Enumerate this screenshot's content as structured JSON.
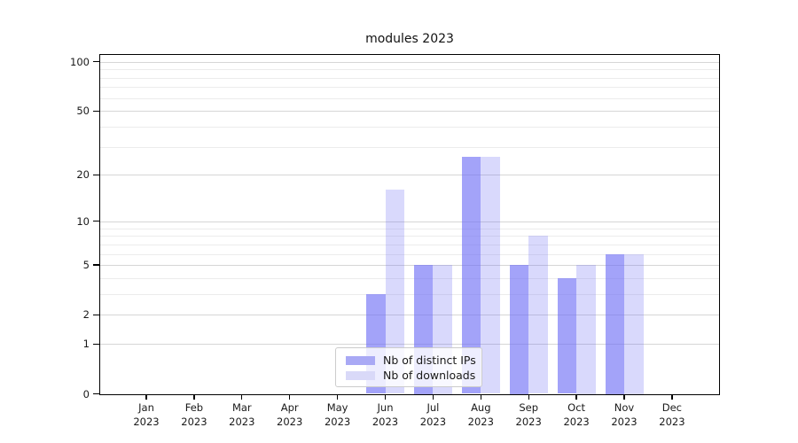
{
  "title": "modules 2023",
  "chart_data": {
    "type": "bar",
    "title": "modules 2023",
    "x_categories": [
      "Jan",
      "Feb",
      "Mar",
      "Apr",
      "May",
      "Jun",
      "Jul",
      "Aug",
      "Sep",
      "Oct",
      "Nov",
      "Dec"
    ],
    "x_year": "2023",
    "series": [
      {
        "name": "Nb of distinct IPs",
        "values": [
          0,
          0,
          0,
          0,
          0,
          3,
          5,
          26,
          5,
          4,
          6,
          0
        ],
        "fill": "rgba(110,110,245,0.63)",
        "legend_color": "#a9a9f5"
      },
      {
        "name": "Nb of downloads",
        "values": [
          0,
          0,
          0,
          0,
          0,
          16,
          5,
          26,
          8,
          5,
          6,
          0
        ],
        "fill": "rgba(110,110,245,0.26)",
        "legend_color": "#d9d9f8"
      }
    ],
    "y_axis": {
      "scale": "log1p",
      "major_ticks": [
        0,
        1,
        2,
        5,
        10,
        20,
        50,
        100
      ],
      "minor_gridlines": [
        3,
        4,
        6,
        7,
        8,
        9,
        30,
        40,
        60,
        70,
        80,
        90
      ],
      "range": [
        0,
        110
      ]
    },
    "grid": {
      "on": true,
      "major_color": "#d6d6d6",
      "minor_color": "#ececec"
    },
    "legend": {
      "position": "lower center"
    },
    "colors": {
      "spine": "#000000",
      "text": "#1a1a1a",
      "background": "#ffffff"
    }
  }
}
